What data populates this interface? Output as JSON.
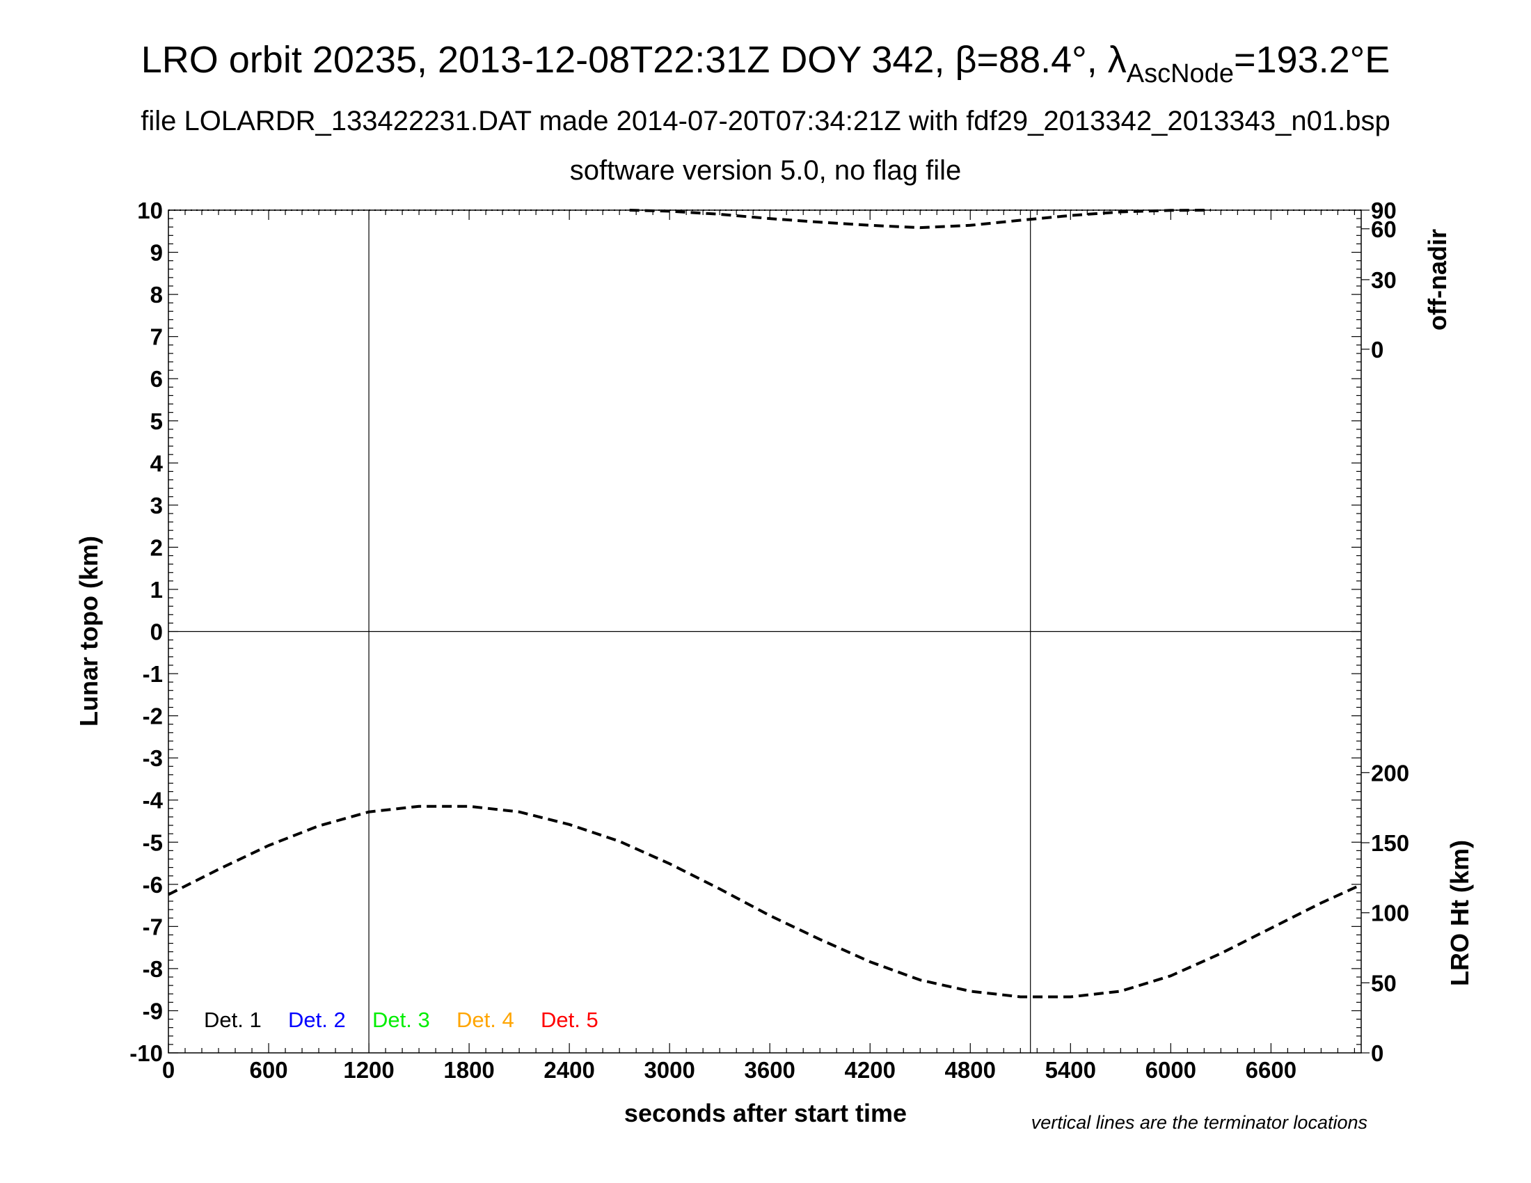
{
  "header": {
    "title_main": "LRO orbit 20235, 2013-12-08T22:31Z DOY 342, β=88.4°, λ",
    "title_sub": "AscNode",
    "title_end": "=193.2°E",
    "subtitle_1": "file LOLARDR_133422231.DAT made 2014-07-20T07:34:21Z with fdf29_2013342_2013343_n01.bsp",
    "subtitle_2": "software version 5.0, no flag file"
  },
  "note": "vertical lines are the terminator locations",
  "legend": [
    {
      "label": "Det. 1",
      "color": "#000000"
    },
    {
      "label": "Det. 2",
      "color": "#0000ff"
    },
    {
      "label": "Det. 3",
      "color": "#00ee00"
    },
    {
      "label": "Det. 4",
      "color": "#ffa500"
    },
    {
      "label": "Det. 5",
      "color": "#ff0000"
    }
  ],
  "chart_data": {
    "type": "line",
    "xlabel": "seconds after start time",
    "ylabel": "Lunar topo (km)",
    "xlim": [
      0,
      7140
    ],
    "ylim": [
      -10,
      10
    ],
    "x_ticks": [
      "0",
      "600",
      "1200",
      "1800",
      "2400",
      "3000",
      "3600",
      "4200",
      "4800",
      "5400",
      "6000",
      "6600"
    ],
    "y_ticks": [
      "10",
      "9",
      "8",
      "7",
      "6",
      "5",
      "4",
      "3",
      "2",
      "1",
      "0",
      "-1",
      "-2",
      "-3",
      "-4",
      "-5",
      "-6",
      "-7",
      "-8",
      "-9",
      "-10"
    ],
    "terminator_x": [
      1200,
      5160
    ],
    "zero_line_y": 0,
    "right_axis_offnadir": {
      "label": "off-nadir",
      "ticks": [
        "90",
        "60",
        "30",
        "0"
      ]
    },
    "right_axis_height": {
      "label": "LRO Ht (km)",
      "ticks": [
        "200",
        "150",
        "100",
        "50",
        "0"
      ]
    },
    "series": [
      {
        "axis": "off-nadir",
        "style": "dashed",
        "color": "#000000",
        "x": [
          2760,
          3000,
          3300,
          3600,
          3900,
          4200,
          4500,
          4800,
          5100,
          5400,
          5700,
          6000,
          6240
        ],
        "y": [
          90,
          83,
          76,
          70,
          66,
          63,
          61,
          63,
          68,
          74,
          81,
          87,
          91
        ]
      },
      {
        "axis": "LRO Ht (km)",
        "style": "dashed",
        "color": "#000000",
        "x": [
          0,
          300,
          600,
          900,
          1200,
          1500,
          1800,
          2100,
          2400,
          2700,
          3000,
          3300,
          3600,
          3900,
          4200,
          4500,
          4800,
          5100,
          5400,
          5700,
          6000,
          6300,
          6600,
          6900,
          7140
        ],
        "y": [
          113,
          131,
          148,
          162,
          172,
          176,
          176,
          172,
          163,
          151,
          135,
          117,
          98,
          81,
          65,
          52,
          44,
          40,
          40,
          44,
          55,
          71,
          89,
          107,
          120
        ]
      }
    ]
  }
}
